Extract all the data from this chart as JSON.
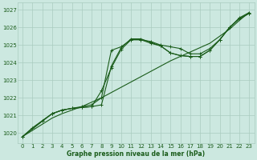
{
  "bg_color": "#cce8e0",
  "grid_color": "#aaccbf",
  "line_color": "#1a5c1a",
  "text_color": "#1a5c1a",
  "xlabel": "Graphe pression niveau de la mer (hPa)",
  "xlim": [
    -0.5,
    23.5
  ],
  "ylim": [
    1019.4,
    1027.4
  ],
  "yticks": [
    1020,
    1021,
    1022,
    1023,
    1024,
    1025,
    1026,
    1027
  ],
  "xticks": [
    0,
    1,
    2,
    3,
    4,
    5,
    6,
    7,
    8,
    9,
    10,
    11,
    12,
    13,
    14,
    15,
    16,
    17,
    18,
    19,
    20,
    21,
    22,
    23
  ],
  "series": [
    {
      "x": [
        0,
        1,
        2,
        3,
        4,
        5,
        6,
        7,
        8,
        9,
        10,
        11,
        12,
        13,
        14,
        15,
        16,
        17,
        18,
        19,
        20,
        21,
        22,
        23
      ],
      "y": [
        1019.8,
        1020.15,
        1020.5,
        1020.85,
        1021.1,
        1021.3,
        1021.5,
        1021.75,
        1022.0,
        1022.3,
        1022.6,
        1022.9,
        1023.2,
        1023.5,
        1023.8,
        1024.1,
        1024.35,
        1024.6,
        1024.85,
        1025.1,
        1025.5,
        1025.9,
        1026.4,
        1026.85
      ]
    },
    {
      "x": [
        0,
        1,
        2,
        3,
        4,
        5,
        6,
        7,
        8,
        9,
        10,
        11,
        12,
        13,
        14,
        15,
        16,
        17,
        18,
        19,
        20,
        21,
        22,
        23
      ],
      "y": [
        1019.8,
        1020.3,
        1020.7,
        1021.1,
        1021.3,
        1021.4,
        1021.5,
        1021.6,
        1022.0,
        1024.7,
        1024.9,
        1025.3,
        1025.3,
        1025.2,
        1025.0,
        1024.9,
        1024.8,
        1024.5,
        1024.5,
        1024.8,
        1025.3,
        1026.0,
        1026.5,
        1026.8
      ]
    },
    {
      "x": [
        0,
        2,
        3,
        4,
        5,
        6,
        7,
        8,
        9,
        10,
        11,
        12,
        13,
        14,
        15,
        16,
        17,
        18,
        19,
        20,
        21,
        22,
        23
      ],
      "y": [
        1019.8,
        1020.7,
        1021.1,
        1021.3,
        1021.4,
        1021.45,
        1021.5,
        1021.6,
        1023.8,
        1024.85,
        1025.35,
        1025.35,
        1025.15,
        1024.95,
        1024.55,
        1024.4,
        1024.35,
        1024.35,
        1024.7,
        1025.3,
        1026.0,
        1026.5,
        1026.8
      ]
    },
    {
      "x": [
        0,
        3,
        4,
        5,
        6,
        7,
        8,
        9,
        10,
        11,
        12,
        13,
        14,
        15,
        16,
        17,
        18,
        19,
        20,
        21,
        22,
        23
      ],
      "y": [
        1019.8,
        1021.1,
        1021.3,
        1021.4,
        1021.45,
        1021.5,
        1022.4,
        1023.7,
        1024.75,
        1025.3,
        1025.3,
        1025.1,
        1024.95,
        1024.55,
        1024.4,
        1024.35,
        1024.35,
        1024.7,
        1025.3,
        1026.0,
        1026.55,
        1026.85
      ]
    }
  ]
}
